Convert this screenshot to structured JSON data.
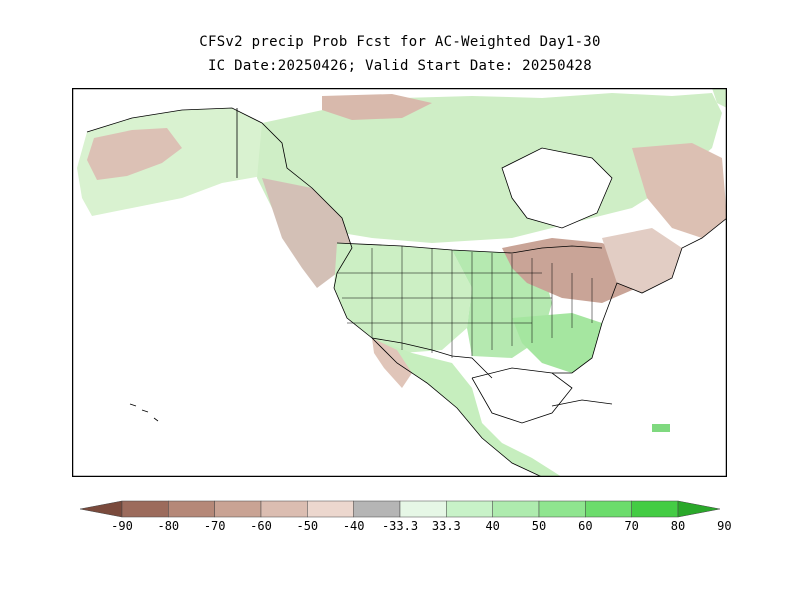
{
  "figure": {
    "title_line1": "CFSv2 precip Prob Fcst for AC-Weighted Day1-30",
    "title_line2": "IC Date:20250426; Valid Start Date: 20250428"
  },
  "colorbar": {
    "labels": [
      "-90",
      "-80",
      "-70",
      "-60",
      "-50",
      "-40",
      "-33.3",
      "33.3",
      "40",
      "50",
      "60",
      "70",
      "80",
      "90"
    ],
    "colors": [
      "#7a4a3c",
      "#9c6b5c",
      "#b58878",
      "#c9a394",
      "#dbbdb1",
      "#ecd7ce",
      "#b5b5b5",
      "#e6f7e6",
      "#c8f2c8",
      "#aeebae",
      "#8fe58f",
      "#6cdc6c",
      "#44cc44",
      "#2aa82a"
    ]
  },
  "map": {
    "region": "North America",
    "field": "precipitation probability",
    "land_color": "#ffffff",
    "ocean_color": "#ffffff",
    "border_color": "#000000"
  }
}
